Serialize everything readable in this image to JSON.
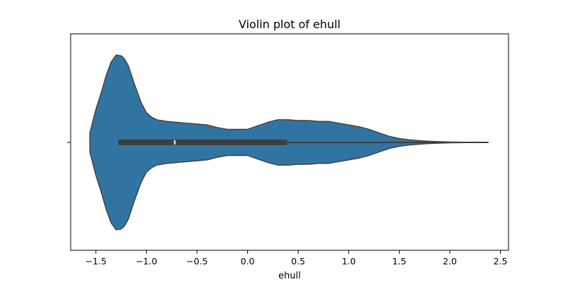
{
  "chart_data": {
    "type": "violin",
    "title": "Violin plot of ehull",
    "xlabel": "ehull",
    "ylabel": "",
    "xlim": [
      -1.75,
      2.58
    ],
    "x_ticks": [
      -1.5,
      -1.0,
      -0.5,
      0.0,
      0.5,
      1.0,
      1.5,
      2.0,
      2.5
    ],
    "x_tick_labels": [
      "−1.5",
      "−1.0",
      "−0.5",
      "0.0",
      "0.5",
      "1.0",
      "1.5",
      "2.0",
      "2.5"
    ],
    "grid": false,
    "violin_color": "#3274a1",
    "edge_color": "#3f3f3f",
    "box_color": "#3f3f3f",
    "median_color": "#ffffff",
    "summary": {
      "min": -1.28,
      "q1": -1.28,
      "median": -0.72,
      "q3": 0.39,
      "whisker_low": -1.28,
      "whisker_high": 2.38
    },
    "density": {
      "x": [
        -1.56,
        -1.54,
        -1.5,
        -1.45,
        -1.4,
        -1.35,
        -1.3,
        -1.25,
        -1.22,
        -1.18,
        -1.12,
        -1.05,
        -1.0,
        -0.95,
        -0.9,
        -0.8,
        -0.7,
        -0.6,
        -0.5,
        -0.4,
        -0.3,
        -0.2,
        -0.1,
        0.0,
        0.1,
        0.2,
        0.3,
        0.4,
        0.5,
        0.6,
        0.7,
        0.8,
        0.9,
        1.0,
        1.1,
        1.2,
        1.3,
        1.4,
        1.5,
        1.6,
        1.7,
        1.8,
        1.9,
        2.0,
        2.1,
        2.2,
        2.3,
        2.38
      ],
      "width": [
        0.11,
        0.2,
        0.38,
        0.56,
        0.76,
        0.92,
        1.0,
        0.99,
        0.96,
        0.88,
        0.67,
        0.45,
        0.34,
        0.29,
        0.26,
        0.24,
        0.23,
        0.22,
        0.21,
        0.2,
        0.17,
        0.15,
        0.15,
        0.15,
        0.19,
        0.23,
        0.26,
        0.26,
        0.25,
        0.25,
        0.24,
        0.24,
        0.22,
        0.2,
        0.18,
        0.15,
        0.11,
        0.07,
        0.045,
        0.03,
        0.02,
        0.013,
        0.008,
        0.005,
        0.003,
        0.002,
        0.001,
        0.0
      ]
    }
  }
}
